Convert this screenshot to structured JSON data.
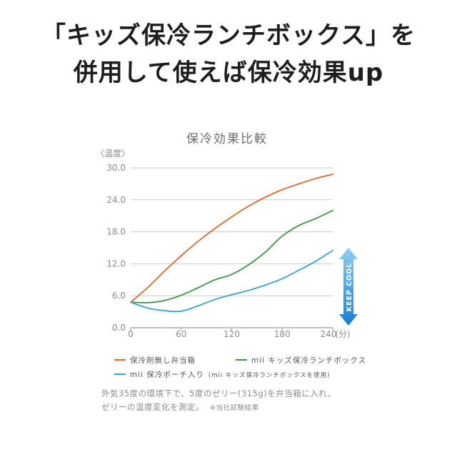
{
  "headline": {
    "line1": "「キッズ保冷ランチボックス」を",
    "line2": "併用して使えば保冷効果up"
  },
  "chart_data": {
    "type": "line",
    "title": "保冷効果比較",
    "ylabel": "〈温度〉",
    "xlabel": "(分)",
    "xlim": [
      0,
      240
    ],
    "ylim": [
      0,
      30
    ],
    "x_ticks": [
      0,
      60,
      120,
      180,
      240
    ],
    "y_ticks": [
      "0.0",
      "6.0",
      "12.0",
      "18.0",
      "24.0",
      "30.0"
    ],
    "y_tick_values": [
      0,
      6,
      12,
      18,
      24,
      30
    ],
    "grid": "horizontal",
    "legend_placement": "bottom",
    "series": [
      {
        "name": "保冷剤無し弁当箱",
        "color": "#e0672a",
        "x": [
          0,
          20,
          40,
          60,
          80,
          100,
          120,
          140,
          160,
          180,
          200,
          220,
          240
        ],
        "y": [
          4.8,
          7.5,
          10.6,
          13.5,
          16.2,
          18.6,
          20.8,
          22.8,
          24.5,
          25.9,
          27.0,
          28.0,
          28.8
        ]
      },
      {
        "name": "mii キッズ保冷ランチボックス",
        "color": "#3a9a3e",
        "x": [
          0,
          20,
          40,
          60,
          80,
          100,
          120,
          140,
          160,
          180,
          200,
          220,
          240
        ],
        "y": [
          4.8,
          4.7,
          5.1,
          6.1,
          7.5,
          9.0,
          10.0,
          11.8,
          14.2,
          17.2,
          19.2,
          20.5,
          22.0
        ]
      },
      {
        "name": "mii 保冷ポーチ入り",
        "name_note": "(mii キッズ保冷ランチボックスを使用)",
        "color": "#3aa0dd",
        "x": [
          0,
          20,
          40,
          60,
          80,
          100,
          120,
          140,
          160,
          180,
          200,
          220,
          240
        ],
        "y": [
          4.8,
          3.7,
          3.2,
          3.1,
          4.1,
          5.3,
          6.2,
          7.0,
          8.0,
          9.2,
          10.8,
          12.5,
          14.5
        ]
      }
    ],
    "annotation": "KEEP COOL",
    "annotation_color": "#2b95d8"
  },
  "note": {
    "line1": "外気35度の環境下で、5度のゼリー(315g)を弁当箱に入れ、",
    "line2": "ゼリーの温度変化を測定。",
    "source": "※当社試験結果"
  }
}
